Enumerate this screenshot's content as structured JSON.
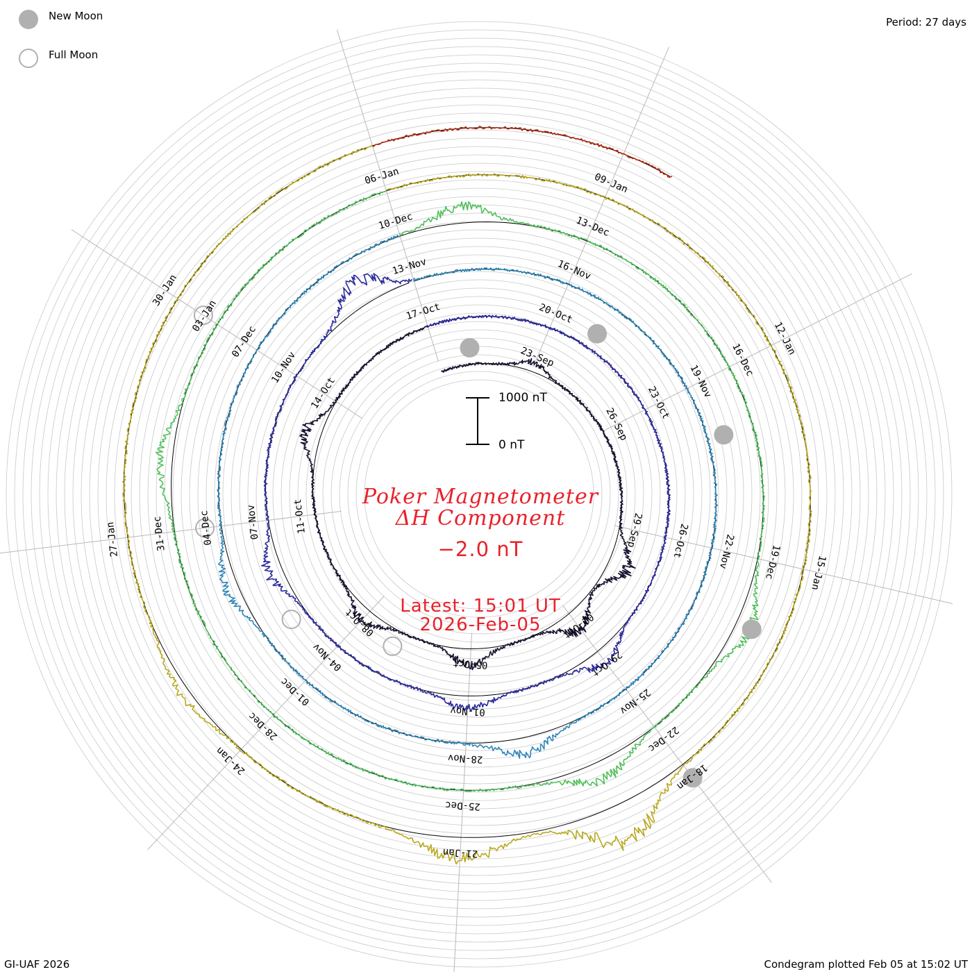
{
  "legend": {
    "new_moon_label": "New Moon",
    "full_moon_label": "Full Moon"
  },
  "period_label": "Period: 27 days",
  "title": {
    "line1": "Poker Magnetometer",
    "line2": "ΔH Component",
    "value": "−2.0 nT",
    "latest_label": "Latest: 15:01 UT",
    "latest_date": "2026-Feb-05"
  },
  "scale_bar": {
    "top_label": "1000 nT",
    "bottom_label": "0 nT"
  },
  "footer": {
    "left": "GI-UAF 2026",
    "right": "Condegram plotted Feb 05 at 15:02 UT"
  },
  "colors": {
    "title_red": "#e8212b",
    "new_moon_fill": "#b0b0b0",
    "full_moon_stroke": "#b0b0b0",
    "grid": "#c8c8c8"
  },
  "chart_data": {
    "type": "line",
    "description_kind": "condegram spiral",
    "period_days": 27,
    "start_date": "2025-09-20",
    "end_date": "2026-02-05",
    "rotations": [
      {
        "index": 0,
        "color": "#1a1230",
        "start": "2025-09-20",
        "date_labels": [
          "23-Sep",
          "26-Sep",
          "29-Sep",
          "02-Oct",
          "05-Oct",
          "08-Oct",
          "11-Oct",
          "14-Oct",
          "17-Oct"
        ]
      },
      {
        "index": 1,
        "color": "#2a2a9c",
        "start": "2025-10-17",
        "date_labels": [
          "20-Oct",
          "23-Oct",
          "26-Oct",
          "29-Oct",
          "01-Nov",
          "04-Nov",
          "07-Nov",
          "10-Nov",
          "13-Nov"
        ]
      },
      {
        "index": 2,
        "color": "#2e86b8",
        "start": "2025-11-13",
        "date_labels": [
          "16-Nov",
          "19-Nov",
          "22-Nov",
          "25-Nov",
          "28-Nov",
          "01-Dec",
          "04-Dec",
          "07-Dec",
          "10-Dec"
        ]
      },
      {
        "index": 3,
        "color": "#4fbf5a",
        "start": "2025-12-10",
        "date_labels": [
          "13-Dec",
          "16-Dec",
          "19-Dec",
          "22-Dec",
          "25-Dec",
          "28-Dec",
          "31-Dec",
          "03-Jan",
          "06-Jan"
        ]
      },
      {
        "index": 4,
        "color": "#b9a81c",
        "start": "2026-01-06",
        "date_labels": [
          "09-Jan",
          "12-Jan",
          "15-Jan",
          "18-Jan",
          "21-Jan",
          "24-Jan",
          "27-Jan",
          "30-Jan"
        ]
      },
      {
        "index": 5,
        "color": "#b02a10",
        "start": "2026-02-02",
        "date_labels": []
      }
    ],
    "series_profile": {
      "unit": "nT",
      "baseline": 0,
      "scale_bar_nT": [
        0,
        1000
      ],
      "disturbances": [
        {
          "date": "2025-09-23",
          "peak_nT": -250
        },
        {
          "date": "2025-09-30",
          "peak_nT": -600
        },
        {
          "date": "2025-10-02",
          "peak_nT": -550
        },
        {
          "date": "2025-10-05",
          "peak_nT": -450
        },
        {
          "date": "2025-10-08",
          "peak_nT": -350
        },
        {
          "date": "2025-10-13",
          "peak_nT": -450
        },
        {
          "date": "2025-10-29",
          "peak_nT": -400
        },
        {
          "date": "2025-11-01",
          "peak_nT": -350
        },
        {
          "date": "2025-11-06",
          "peak_nT": -400
        },
        {
          "date": "2025-11-12",
          "peak_nT": -700
        },
        {
          "date": "2025-11-27",
          "peak_nT": -450
        },
        {
          "date": "2025-12-03",
          "peak_nT": -350
        },
        {
          "date": "2025-12-11",
          "peak_nT": -450
        },
        {
          "date": "2025-12-20",
          "peak_nT": -450
        },
        {
          "date": "2025-12-23",
          "peak_nT": -500
        },
        {
          "date": "2026-01-01",
          "peak_nT": -350
        },
        {
          "date": "2026-01-19",
          "peak_nT": -1000
        },
        {
          "date": "2026-01-21",
          "peak_nT": -600
        },
        {
          "date": "2026-01-25",
          "peak_nT": -250
        }
      ]
    },
    "new_moons": [
      "2025-09-21",
      "2025-10-21",
      "2025-11-20",
      "2025-12-20",
      "2026-01-18"
    ],
    "full_moons": [
      "2025-10-07",
      "2025-11-05",
      "2025-12-04",
      "2026-01-03"
    ],
    "grid": true,
    "legend_position": "top-left"
  }
}
